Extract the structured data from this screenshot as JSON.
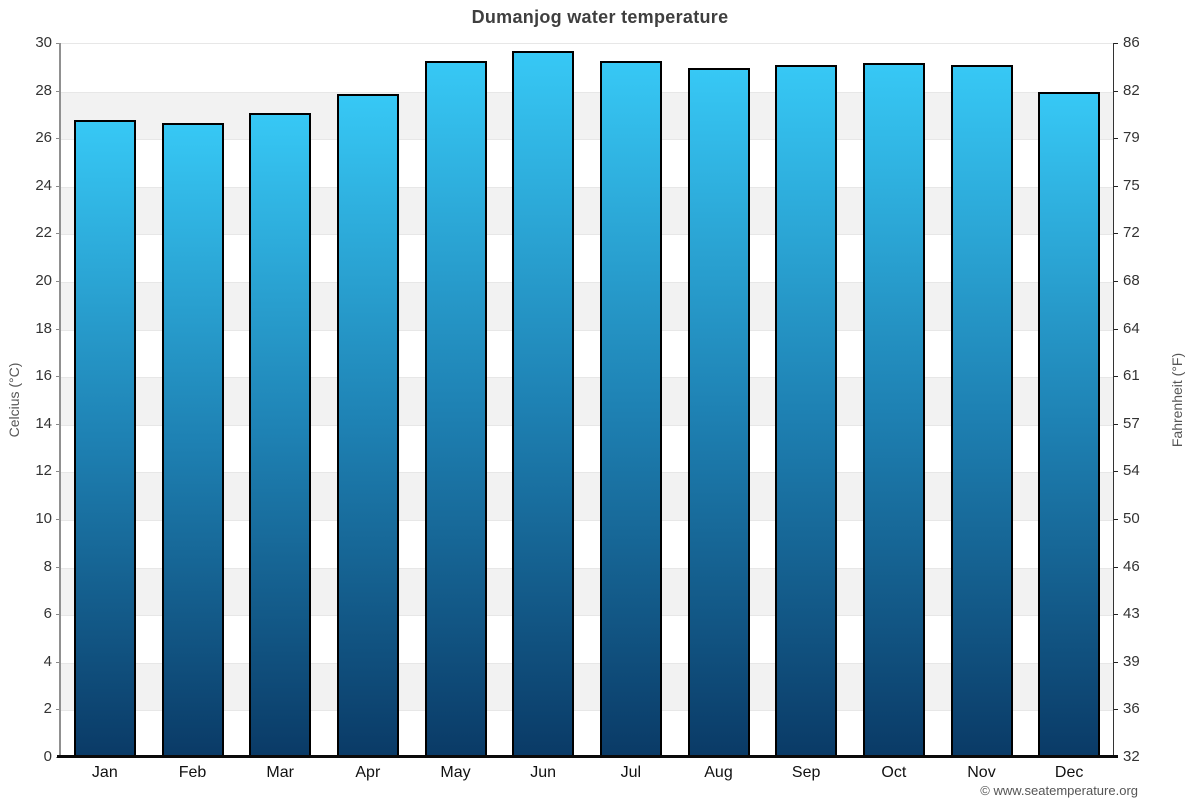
{
  "title": "Dumanjog water temperature",
  "footer_credit": "© www.seatemperature.org",
  "y_axis_left": {
    "label": "Celcius (°C)",
    "ticks": [
      "30",
      "28",
      "26",
      "24",
      "22",
      "20",
      "18",
      "16",
      "14",
      "12",
      "10",
      "8",
      "6",
      "4",
      "2",
      "0"
    ]
  },
  "y_axis_right": {
    "label": "Fahrenheit (°F)",
    "ticks": [
      "86",
      "82",
      "79",
      "75",
      "72",
      "68",
      "64",
      "61",
      "57",
      "54",
      "50",
      "46",
      "43",
      "39",
      "36",
      "32"
    ]
  },
  "chart_data": {
    "type": "bar",
    "title": "Dumanjog water temperature",
    "categories": [
      "Jan",
      "Feb",
      "Mar",
      "Apr",
      "May",
      "Jun",
      "Jul",
      "Aug",
      "Sep",
      "Oct",
      "Nov",
      "Dec"
    ],
    "values": [
      26.8,
      26.7,
      27.1,
      27.9,
      29.3,
      29.7,
      29.3,
      29.0,
      29.1,
      29.2,
      29.1,
      28.0
    ],
    "unit": "°C",
    "xlabel": "",
    "ylabel_left": "Celcius (°C)",
    "ylabel_right": "Fahrenheit (°F)",
    "ylim": [
      0,
      30
    ],
    "celsius_tick_step": 2,
    "fahrenheit_ticks": [
      86,
      82,
      79,
      75,
      72,
      68,
      64,
      61,
      57,
      54,
      50,
      46,
      43,
      39,
      36,
      32
    ],
    "grid": "alternating horizontal bands every 2°C",
    "legend": "none"
  },
  "colors": {
    "band_light": "#ffffff",
    "band_dark": "#f2f2f2",
    "gridline": "#e7e7e7",
    "bar_top": "#37c8f5",
    "bar_mid": "#1e81b3",
    "bar_bottom": "#0a3a66",
    "bar_border": "#000000",
    "axis_left_line": "#909090",
    "axis_right_line": "#333333",
    "baseline": "#0a0a0a",
    "left_tick": "#888888",
    "right_tick": "#222222"
  }
}
